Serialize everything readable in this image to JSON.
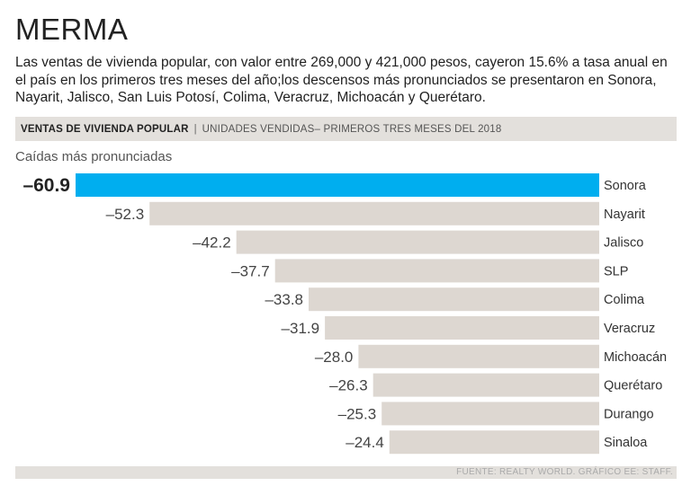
{
  "title": "MERMA",
  "description": "Las ventas de vivienda popular, con valor entre 269,000 y 421,000 pesos, cayeron 15.6% a tasa anual en el país en los primeros tres meses del año;los descensos más pronunciados se presentaron en Sonora, Nayarit, Jalisco, San Luis Potosí, Colima, Veracruz, Michoacán y Querétaro.",
  "header": {
    "bold": "VENTAS DE VIVIENDA POPULAR",
    "separator": "|",
    "light": "UNIDADES VENDIDAS– PRIMEROS TRES MESES DEL 2018"
  },
  "subtitle": "Caídas más pronunciadas",
  "footer": "FUENTE: REALTY WORLD. GRÁFICO EE: STAFF.",
  "colors": {
    "highlight": "#00aeef",
    "bar": "#ddd7d1",
    "band": "#e3e0dc"
  },
  "chart_data": {
    "type": "bar",
    "orientation": "horizontal",
    "title": "VENTAS DE VIVIENDA POPULAR",
    "subtitle": "Caídas más pronunciadas",
    "categories": [
      "Sonora",
      "Nayarit",
      "Jalisco",
      "SLP",
      "Colima",
      "Veracruz",
      "Michoacán",
      "Querétaro",
      "Durango",
      "Sinaloa"
    ],
    "values": [
      -60.9,
      -52.3,
      -42.2,
      -37.7,
      -33.8,
      -31.9,
      -28.0,
      -26.3,
      -25.3,
      -24.4
    ],
    "labels": [
      "–60.9",
      "–52.3",
      "–42.2",
      "–37.7",
      "–33.8",
      "–31.9",
      "–28.0",
      "–26.3",
      "–25.3",
      "–24.4"
    ],
    "highlight_index": 0,
    "xlabel": "",
    "ylabel": "",
    "xlim": [
      -60.9,
      0
    ]
  }
}
